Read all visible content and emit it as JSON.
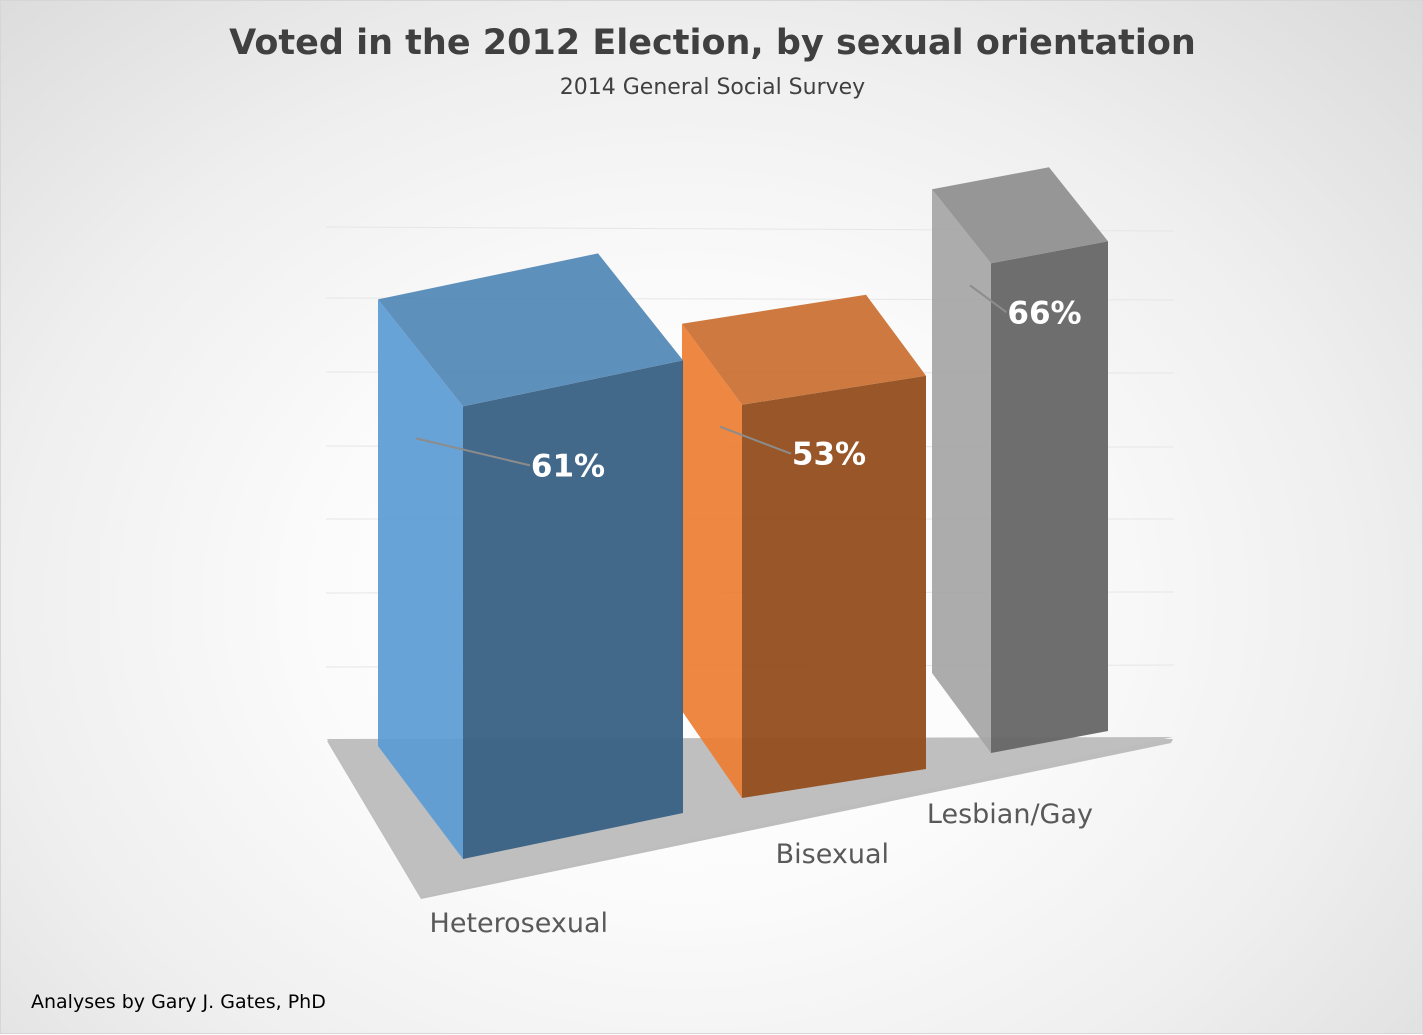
{
  "chart_data": {
    "type": "bar",
    "title": "Voted in the 2012 Election, by sexual orientation",
    "subtitle": "2014 General Social Survey",
    "categories": [
      "Heterosexual",
      "Bisexual",
      "Lesbian/Gay"
    ],
    "values": [
      61,
      53,
      66
    ],
    "data_labels": [
      "61%",
      "53%",
      "66%"
    ],
    "colors": [
      "#5b9bd5",
      "#ed7d31",
      "#a5a5a5"
    ],
    "ylim": [
      0,
      70
    ],
    "grid": true,
    "legend": "none",
    "style": "3d-perspective-column"
  },
  "footer": {
    "credit": "Analyses by Gary J. Gates, PhD"
  }
}
